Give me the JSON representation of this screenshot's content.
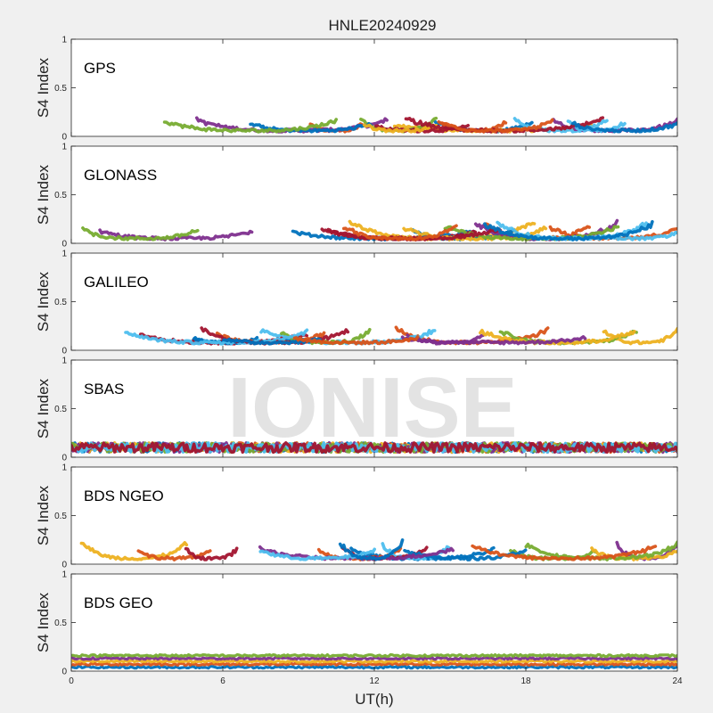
{
  "figure": {
    "title": "HNLE20240929",
    "xlabel": "UT(h)",
    "watermark": "IONISE"
  },
  "palette": [
    "#0072BD",
    "#D95319",
    "#EDB120",
    "#7E2F8E",
    "#77AC30",
    "#4DBEEE",
    "#A2142F"
  ],
  "chart_data": [
    {
      "type": "scatter",
      "panel_label": "GPS",
      "ylabel": "S4 Index",
      "xlim": [
        0,
        24
      ],
      "ylim": [
        0,
        1
      ],
      "xticks": [
        0,
        6,
        12,
        18,
        24
      ],
      "yticks": [
        0,
        0.5,
        1
      ],
      "ytick_labels": [
        "0",
        "0.5",
        "1"
      ],
      "series_style": "multi-satellite tracks",
      "typical_s4_range": [
        0.02,
        0.2
      ],
      "baseline_s4": 0.06
    },
    {
      "type": "scatter",
      "panel_label": "GLONASS",
      "ylabel": "S4 Index",
      "xlim": [
        0,
        24
      ],
      "ylim": [
        0,
        1
      ],
      "xticks": [
        0,
        6,
        12,
        18,
        24
      ],
      "yticks": [
        0,
        0.5,
        1
      ],
      "ytick_labels": [
        "0",
        "0.5",
        "1"
      ],
      "series_style": "multi-satellite tracks",
      "typical_s4_range": [
        0.02,
        0.24
      ],
      "baseline_s4": 0.05
    },
    {
      "type": "scatter",
      "panel_label": "GALILEO",
      "ylabel": "S4 Index",
      "xlim": [
        0,
        24
      ],
      "ylim": [
        0,
        1
      ],
      "xticks": [
        0,
        6,
        12,
        18,
        24
      ],
      "yticks": [
        0,
        0.5,
        1
      ],
      "ytick_labels": [
        "0",
        "0.5",
        "1"
      ],
      "series_style": "multi-satellite tracks",
      "typical_s4_range": [
        0.03,
        0.24
      ],
      "baseline_s4": 0.08
    },
    {
      "type": "scatter",
      "panel_label": "SBAS",
      "ylabel": "S4 Index",
      "xlim": [
        0,
        24
      ],
      "ylim": [
        0,
        1
      ],
      "xticks": [
        0,
        6,
        12,
        18,
        24
      ],
      "yticks": [
        0,
        0.5,
        1
      ],
      "ytick_labels": [
        "0",
        "0.5",
        "1"
      ],
      "series_style": "dense noisy band",
      "typical_s4_range": [
        0.05,
        0.17
      ],
      "baseline_s4": 0.1
    },
    {
      "type": "scatter",
      "panel_label": "BDS NGEO",
      "ylabel": "S4 Index",
      "xlim": [
        0,
        24
      ],
      "ylim": [
        0,
        1
      ],
      "xticks": [
        0,
        6,
        12,
        18,
        24
      ],
      "yticks": [
        0,
        0.5,
        1
      ],
      "ytick_labels": [
        "0",
        "0.5",
        "1"
      ],
      "series_style": "multi-satellite tracks",
      "typical_s4_range": [
        0.02,
        0.24
      ],
      "baseline_s4": 0.06
    },
    {
      "type": "scatter",
      "panel_label": "BDS GEO",
      "ylabel": "S4 Index",
      "xlim": [
        0,
        24
      ],
      "ylim": [
        0,
        1
      ],
      "xticks": [
        0,
        6,
        12,
        18,
        24
      ],
      "yticks": [
        0,
        0.5,
        1
      ],
      "ytick_labels": [
        "0",
        "0.5",
        "1"
      ],
      "series_style": "flat parallel bands",
      "typical_s4_range": [
        0.04,
        0.16
      ],
      "baseline_s4": 0.09
    }
  ]
}
